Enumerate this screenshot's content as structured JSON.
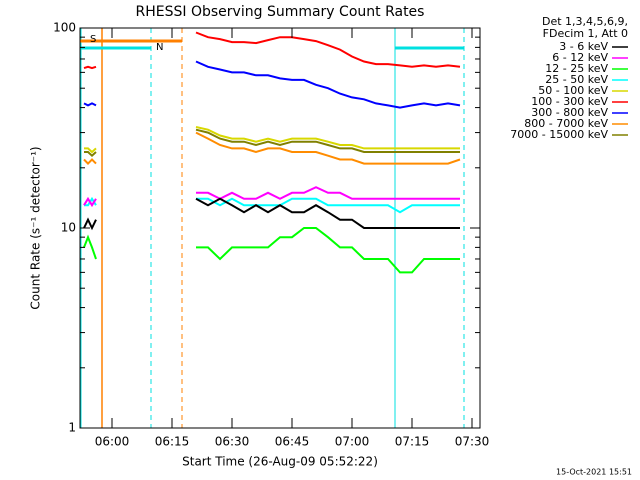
{
  "chart_data": {
    "type": "line",
    "title": "RHESSI Observing Summary Count Rates",
    "x_label": "Start Time (26-Aug-09 05:52:22)",
    "y_label": "Count Rate (s⁻¹ detector⁻¹)",
    "legend_header": [
      "Det 1,3,4,5,6,9,",
      "FDecim 1, Att 0"
    ],
    "footer": "15-Oct-2021 15:51",
    "annotations": [
      {
        "text": "S",
        "color": "#ff8000"
      },
      {
        "text": "N",
        "color": "#00e0e0"
      }
    ],
    "log_y": true,
    "xlim": [
      "05:52",
      "07:32"
    ],
    "xticks": [
      "06:00",
      "06:15",
      "06:30",
      "06:45",
      "07:00",
      "07:15",
      "07:30"
    ],
    "ylim": [
      1,
      100
    ],
    "yticks": [
      1,
      10,
      100
    ],
    "x": [
      "05:53",
      "05:54",
      "05:55",
      "05:56",
      "06:08",
      "06:21",
      "06:24",
      "06:27",
      "06:30",
      "06:33",
      "06:36",
      "06:39",
      "06:42",
      "06:45",
      "06:48",
      "06:51",
      "06:54",
      "06:57",
      "07:00",
      "07:03",
      "07:06",
      "07:09",
      "07:12",
      "07:15",
      "07:18",
      "07:21",
      "07:24",
      "07:27"
    ],
    "series": [
      {
        "name": "3 - 6 keV",
        "color": "#000000",
        "values": [
          10,
          11,
          10,
          11,
          null,
          14,
          13,
          14,
          13,
          12,
          13,
          12,
          13,
          12,
          12,
          13,
          12,
          11,
          11,
          10,
          10,
          10,
          10,
          10,
          10,
          10,
          10,
          10
        ]
      },
      {
        "name": "6 - 12 keV",
        "color": "#ff00ff",
        "values": [
          13,
          14,
          13,
          14,
          null,
          15,
          15,
          14,
          15,
          14,
          14,
          15,
          14,
          15,
          15,
          16,
          15,
          15,
          14,
          14,
          14,
          14,
          14,
          14,
          14,
          14,
          14,
          14
        ]
      },
      {
        "name": "12 - 25 keV",
        "color": "#00ff00",
        "values": [
          8,
          9,
          8,
          7,
          null,
          8,
          8,
          7,
          8,
          8,
          8,
          8,
          9,
          9,
          10,
          10,
          9,
          8,
          8,
          7,
          7,
          7,
          6,
          6,
          7,
          7,
          7,
          7
        ]
      },
      {
        "name": "25 - 50 keV",
        "color": "#00ffff",
        "values": [
          13,
          13,
          14,
          13,
          null,
          14,
          14,
          13,
          14,
          13,
          13,
          13,
          13,
          14,
          14,
          14,
          13,
          13,
          13,
          13,
          13,
          13,
          12,
          13,
          13,
          13,
          13,
          13
        ]
      },
      {
        "name": "50 - 100 keV",
        "color": "#d8d800",
        "values": [
          25,
          25,
          24,
          25,
          null,
          32,
          31,
          29,
          28,
          28,
          27,
          28,
          27,
          28,
          28,
          28,
          27,
          26,
          26,
          25,
          25,
          25,
          25,
          25,
          25,
          25,
          25,
          25
        ]
      },
      {
        "name": "100 - 300 keV",
        "color": "#ff0000",
        "values": [
          63,
          64,
          63,
          64,
          null,
          95,
          90,
          88,
          85,
          85,
          84,
          87,
          90,
          90,
          88,
          86,
          82,
          78,
          72,
          68,
          66,
          66,
          65,
          64,
          65,
          64,
          65,
          64
        ]
      },
      {
        "name": "300 - 800 keV",
        "color": "#0000ff",
        "values": [
          42,
          41,
          42,
          41,
          null,
          68,
          64,
          62,
          60,
          60,
          58,
          58,
          56,
          55,
          55,
          52,
          50,
          47,
          45,
          44,
          42,
          41,
          40,
          41,
          42,
          41,
          42,
          41
        ]
      },
      {
        "name": "800 - 7000 keV",
        "color": "#ff8c00",
        "values": [
          22,
          21,
          22,
          21,
          null,
          30,
          28,
          26,
          25,
          25,
          24,
          25,
          25,
          24,
          24,
          24,
          23,
          22,
          22,
          21,
          21,
          21,
          21,
          21,
          21,
          21,
          21,
          22
        ]
      },
      {
        "name": "7000 - 15000 keV",
        "color": "#808000",
        "values": [
          24,
          24,
          23,
          24,
          null,
          31,
          30,
          28,
          27,
          27,
          26,
          27,
          26,
          27,
          27,
          27,
          26,
          25,
          25,
          24,
          24,
          24,
          24,
          24,
          24,
          24,
          24,
          24
        ]
      }
    ]
  }
}
